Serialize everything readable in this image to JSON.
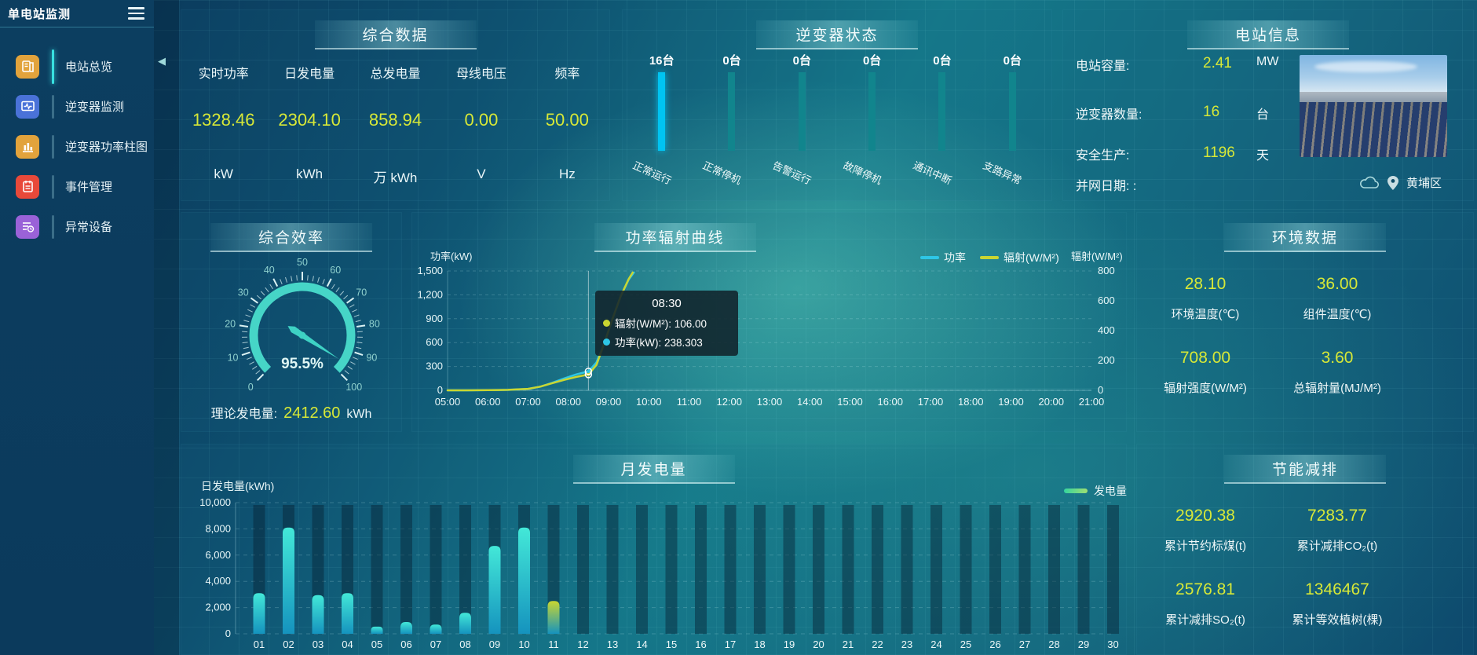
{
  "app": {
    "title": "单电站监测"
  },
  "misc": {
    "collapse_arrow": "◀"
  },
  "sidebar": {
    "items": [
      {
        "name": "station-overview",
        "label": "电站总览",
        "icon": "book-icon",
        "color": "#e2a33c",
        "active": true
      },
      {
        "name": "inverter-monitor",
        "label": "逆变器监测",
        "icon": "monitor-icon",
        "color": "#4a72d8",
        "active": false
      },
      {
        "name": "inverter-power-bars",
        "label": "逆变器功率柱图",
        "icon": "barchart-icon",
        "color": "#e2a33c",
        "active": false
      },
      {
        "name": "event-management",
        "label": "事件管理",
        "icon": "notebook-icon",
        "color": "#e8493a",
        "active": false
      },
      {
        "name": "abnormal-devices",
        "label": "异常设备",
        "icon": "device-list-icon",
        "color": "#9a62d8",
        "active": false
      }
    ]
  },
  "summary": {
    "title": "综合数据",
    "metrics": [
      {
        "label": "实时功率",
        "value": "1328.46",
        "unit": "kW"
      },
      {
        "label": "日发电量",
        "value": "2304.10",
        "unit": "kWh"
      },
      {
        "label": "总发电量",
        "value": "858.94",
        "unit": "万 kWh"
      },
      {
        "label": "母线电压",
        "value": "0.00",
        "unit": "V"
      },
      {
        "label": "频率",
        "value": "50.00",
        "unit": "Hz"
      }
    ]
  },
  "inverter_status": {
    "title": "逆变器状态",
    "items": [
      {
        "count": "16台",
        "label": "正常运行",
        "highlight": true
      },
      {
        "count": "0台",
        "label": "正常停机",
        "highlight": false
      },
      {
        "count": "0台",
        "label": "告警运行",
        "highlight": false
      },
      {
        "count": "0台",
        "label": "故障停机",
        "highlight": false
      },
      {
        "count": "0台",
        "label": "通讯中断",
        "highlight": false
      },
      {
        "count": "0台",
        "label": "支路异常",
        "highlight": false
      }
    ]
  },
  "station_info": {
    "title": "电站信息",
    "rows": [
      {
        "label": "电站容量:",
        "value": "2.41",
        "unit": "MW"
      },
      {
        "label": "逆变器数量:",
        "value": "16",
        "unit": "台"
      },
      {
        "label": "安全生产:",
        "value": "1196",
        "unit": "天"
      },
      {
        "label": "并网日期: :",
        "value": "",
        "unit": ""
      }
    ],
    "location": "黄埔区"
  },
  "efficiency": {
    "title": "综合效率",
    "gauge": {
      "min": 0,
      "max": 100,
      "value": 95.5,
      "display": "95.5%",
      "major_step": 10
    },
    "theoretical": {
      "label": "理论发电量:",
      "value": "2412.60",
      "unit": "kWh"
    }
  },
  "power_curve": {
    "title": "功率辐射曲线",
    "chart_data": {
      "type": "line",
      "y_left": {
        "title": "功率(kW)",
        "ticks": [
          "1,500",
          "1,200",
          "900",
          "600",
          "300",
          "0"
        ],
        "max": 1500
      },
      "y_right": {
        "title": "辐射(W/M²)",
        "ticks": [
          "800",
          "600",
          "400",
          "200",
          "0"
        ],
        "max": 800
      },
      "x_ticks": [
        "05:00",
        "06:00",
        "07:00",
        "08:00",
        "09:00",
        "10:00",
        "11:00",
        "12:00",
        "13:00",
        "14:00",
        "15:00",
        "16:00",
        "17:00",
        "18:00",
        "19:00",
        "20:00",
        "21:00"
      ],
      "legend": [
        {
          "label": "功率",
          "color": "#2ec6e6"
        },
        {
          "label": "辐射(W/M²)",
          "color": "#c9d631"
        }
      ],
      "series": [
        {
          "name": "功率",
          "axis": "left",
          "color": "#2ec6e6",
          "points": [
            [
              5,
              0
            ],
            [
              5.5,
              0
            ],
            [
              6,
              2
            ],
            [
              6.5,
              5
            ],
            [
              7,
              18
            ],
            [
              7.3,
              45
            ],
            [
              7.6,
              95
            ],
            [
              7.9,
              150
            ],
            [
              8.2,
              200
            ],
            [
              8.5,
              238.3
            ],
            [
              8.7,
              350
            ],
            [
              8.9,
              600
            ],
            [
              9.1,
              900
            ],
            [
              9.3,
              1180
            ],
            [
              9.5,
              1390
            ],
            [
              9.63,
              1480
            ]
          ]
        },
        {
          "name": "辐射",
          "axis": "right",
          "color": "#c9d631",
          "points": [
            [
              5,
              0
            ],
            [
              5.5,
              0
            ],
            [
              6,
              1
            ],
            [
              6.5,
              3
            ],
            [
              7,
              10
            ],
            [
              7.3,
              25
            ],
            [
              7.6,
              48
            ],
            [
              7.9,
              70
            ],
            [
              8.2,
              90
            ],
            [
              8.5,
              106
            ],
            [
              8.7,
              170
            ],
            [
              8.9,
              320
            ],
            [
              9.1,
              480
            ],
            [
              9.3,
              630
            ],
            [
              9.5,
              745
            ],
            [
              9.6,
              790
            ]
          ]
        }
      ],
      "tooltip": {
        "time": "08:30",
        "x_hour": 8.5,
        "power": 238.303,
        "radiation": 106,
        "rows": [
          {
            "dot": "#c9d631",
            "text": "辐射(W/M²): 106.00"
          },
          {
            "dot": "#2ec6e6",
            "text": "功率(kW): 238.303"
          }
        ]
      }
    }
  },
  "environment": {
    "title": "环境数据",
    "cells": [
      {
        "value": "28.10",
        "label": "环境温度(℃)"
      },
      {
        "value": "36.00",
        "label": "组件温度(℃)"
      },
      {
        "value": "708.00",
        "label": "辐射强度(W/M²)"
      },
      {
        "value": "3.60",
        "label": "总辐射量(MJ/M²)"
      }
    ]
  },
  "monthly": {
    "title": "月发电量",
    "legend": "发电量",
    "chart_data": {
      "type": "bar",
      "ylabel": "日发电量(kWh)",
      "y_ticks": [
        "10,000",
        "8,000",
        "6,000",
        "4,000",
        "2,000",
        "0"
      ],
      "ylim": [
        0,
        10000
      ],
      "categories": [
        "01",
        "02",
        "03",
        "04",
        "05",
        "06",
        "07",
        "08",
        "09",
        "10",
        "11",
        "12",
        "13",
        "14",
        "15",
        "16",
        "17",
        "18",
        "19",
        "20",
        "21",
        "22",
        "23",
        "24",
        "25",
        "26",
        "27",
        "28",
        "29",
        "30"
      ],
      "values": [
        3100,
        8100,
        2950,
        3100,
        550,
        900,
        700,
        1600,
        6700,
        8100,
        2500,
        0,
        0,
        0,
        0,
        0,
        0,
        0,
        0,
        0,
        0,
        0,
        0,
        0,
        0,
        0,
        0,
        0,
        0,
        0
      ],
      "highlight_index": 10,
      "bar_top_color": "#43e8d8",
      "bar_bottom_color": "#1593be",
      "highlight_top_color": "#c9d631"
    }
  },
  "saving": {
    "title": "节能减排",
    "cells": [
      {
        "value": "2920.38",
        "label": "累计节约标煤(t)"
      },
      {
        "value": "7283.77",
        "label": "累计减排CO₂(t)"
      },
      {
        "value": "2576.81",
        "label": "累计减排SO₂(t)"
      },
      {
        "value": "1346467",
        "label": "累计等效植树(棵)"
      }
    ]
  }
}
